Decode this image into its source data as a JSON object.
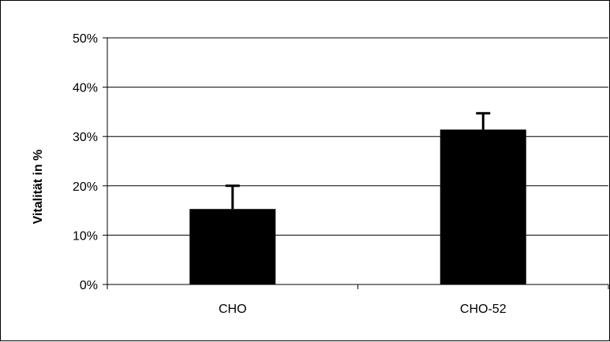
{
  "chart_data": {
    "type": "bar",
    "title": "",
    "xlabel": "",
    "ylabel": "Vitalität in %",
    "categories": [
      "CHO",
      "CHO-52"
    ],
    "values": [
      0.153,
      0.314
    ],
    "error_bars": [
      0.047,
      0.033
    ],
    "y_ticks": [
      0,
      0.1,
      0.2,
      0.3,
      0.4,
      0.5
    ],
    "y_tick_labels": [
      "0%",
      "10%",
      "20%",
      "30%",
      "40%",
      "50%"
    ],
    "ylim": [
      0,
      0.5
    ],
    "grid": true,
    "legend": "none",
    "bar_color": "#000000",
    "grid_color": "#000000"
  }
}
